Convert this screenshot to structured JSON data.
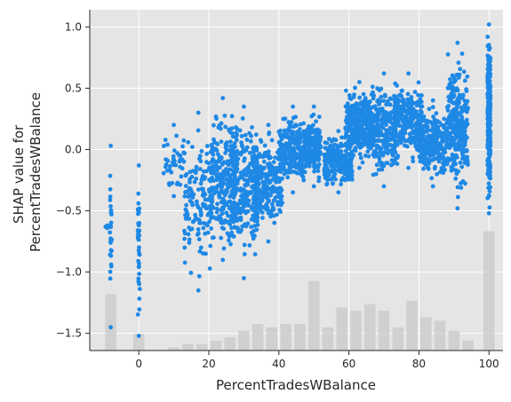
{
  "chart_data": {
    "type": "scatter",
    "title": "",
    "xlabel": "PercentTradesWBalance",
    "ylabel": [
      "SHAP value for",
      "PercentTradesWBalance"
    ],
    "xlim": [
      -14,
      104
    ],
    "ylim": [
      -1.64,
      1.14
    ],
    "xticks": [
      0,
      20,
      40,
      60,
      80,
      100
    ],
    "yticks": [
      -1.5,
      -1.0,
      -0.5,
      0.0,
      0.5,
      1.0
    ],
    "xtick_labels": [
      "0",
      "20",
      "40",
      "60",
      "80",
      "100"
    ],
    "ytick_labels": [
      "−1.5",
      "−1.0",
      "−0.5",
      "0.0",
      "0.5",
      "1.0"
    ],
    "grid": true,
    "background": "#e5e5e5",
    "point_color": "#1e88e5",
    "histogram_color": "#cccccc",
    "histogram_note": "light gray background histogram of feature value distribution",
    "histogram": {
      "bin_centers": [
        -8,
        0,
        10,
        14,
        18,
        22,
        26,
        30,
        34,
        38,
        42,
        46,
        50,
        54,
        58,
        62,
        66,
        70,
        74,
        78,
        82,
        86,
        90,
        94,
        100
      ],
      "heights": [
        0.17,
        0.05,
        0.01,
        0.02,
        0.02,
        0.03,
        0.04,
        0.06,
        0.08,
        0.07,
        0.08,
        0.08,
        0.21,
        0.07,
        0.13,
        0.12,
        0.14,
        0.12,
        0.07,
        0.15,
        0.1,
        0.09,
        0.06,
        0.03,
        0.36
      ]
    },
    "clusters": [
      {
        "x": -8,
        "x_spread": 0.3,
        "y_min": -1.45,
        "y_max": 0.03,
        "n": 25
      },
      {
        "x": -9,
        "x_spread": 0.6,
        "y_min": -0.64,
        "y_max": -0.62,
        "n": 8
      },
      {
        "x": 0,
        "x_spread": 0.3,
        "y_min": -1.52,
        "y_max": -0.13,
        "n": 35
      },
      {
        "x": 10,
        "x_spread": 3,
        "y_min": -0.38,
        "y_max": 0.2,
        "n": 40
      },
      {
        "x": 17,
        "x_spread": 4,
        "y_min": -1.15,
        "y_max": 0.3,
        "n": 140
      },
      {
        "x": 24,
        "x_spread": 4,
        "y_min": -0.9,
        "y_max": 0.42,
        "n": 240
      },
      {
        "x": 30,
        "x_spread": 4,
        "y_min": -1.05,
        "y_max": 0.35,
        "n": 260
      },
      {
        "x": 37,
        "x_spread": 4,
        "y_min": -0.75,
        "y_max": 0.2,
        "n": 240
      },
      {
        "x": 44,
        "x_spread": 4,
        "y_min": -0.35,
        "y_max": 0.35,
        "n": 260
      },
      {
        "x": 50,
        "x_spread": 2,
        "y_min": -0.3,
        "y_max": 0.35,
        "n": 150
      },
      {
        "x": 57,
        "x_spread": 4,
        "y_min": -0.35,
        "y_max": 0.15,
        "n": 240
      },
      {
        "x": 63,
        "x_spread": 4,
        "y_min": -0.15,
        "y_max": 0.55,
        "n": 280
      },
      {
        "x": 70,
        "x_spread": 4,
        "y_min": -0.3,
        "y_max": 0.62,
        "n": 260
      },
      {
        "x": 77,
        "x_spread": 4,
        "y_min": -0.15,
        "y_max": 0.62,
        "n": 240
      },
      {
        "x": 84,
        "x_spread": 4,
        "y_min": -0.3,
        "y_max": 0.4,
        "n": 260
      },
      {
        "x": 91,
        "x_spread": 3,
        "y_min": -0.48,
        "y_max": 0.87,
        "n": 260
      },
      {
        "x": 100,
        "x_spread": 0.4,
        "y_min": -0.52,
        "y_max": 1.02,
        "n": 300
      }
    ]
  }
}
